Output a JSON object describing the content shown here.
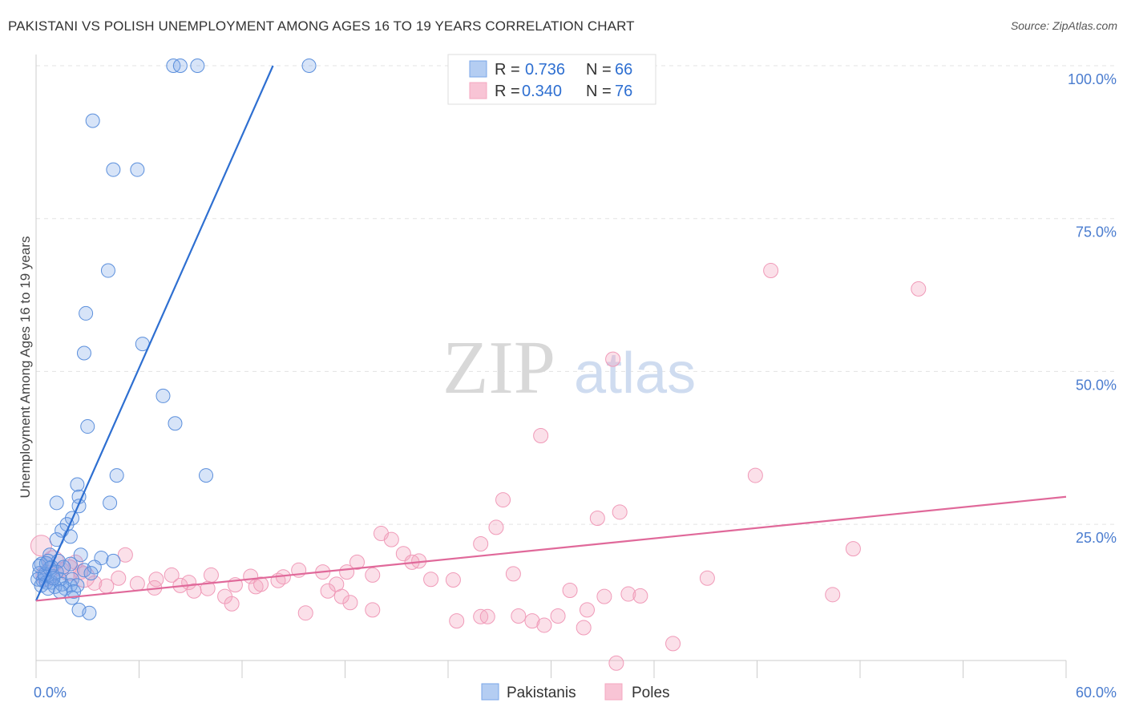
{
  "title": "PAKISTANI VS POLISH UNEMPLOYMENT AMONG AGES 16 TO 19 YEARS CORRELATION CHART",
  "source": "Source: ZipAtlas.com",
  "watermark": {
    "zip": "ZIP",
    "atlas": "atlas"
  },
  "chart_data": {
    "type": "scatter",
    "xlabel": "",
    "ylabel": "Unemployment Among Ages 16 to 19 years",
    "xlim": [
      0,
      60
    ],
    "ylim": [
      0,
      105
    ],
    "x_tick_labels": [
      "0.0%",
      "60.0%"
    ],
    "y_ticks": [
      25,
      50,
      75,
      100
    ],
    "y_tick_labels": [
      "25.0%",
      "50.0%",
      "75.0%",
      "100.0%"
    ],
    "grid": "horizontal dashed",
    "legend_position": "top-center",
    "colors": {
      "Pakistanis": "#7aa6e8",
      "Poles": "#f4a7c0",
      "pak_line": "#2e6fd1",
      "pol_line": "#e0699a"
    },
    "stats": [
      {
        "series": "Pakistanis",
        "r_label": "R =",
        "r": "0.736",
        "n_label": "N =",
        "n": "66"
      },
      {
        "series": "Poles",
        "r_label": "R =",
        "r": "0.340",
        "n_label": "N =",
        "n": "76"
      }
    ],
    "series": [
      {
        "name": "Pakistanis",
        "trend": {
          "x": [
            0,
            13.8
          ],
          "y": [
            12.5,
            100
          ]
        },
        "points": [
          [
            8.0,
            100
          ],
          [
            8.4,
            100
          ],
          [
            9.4,
            100
          ],
          [
            15.9,
            100
          ],
          [
            3.3,
            91
          ],
          [
            4.5,
            83
          ],
          [
            5.9,
            83
          ],
          [
            4.2,
            66.5
          ],
          [
            2.9,
            59.5
          ],
          [
            6.2,
            54.5
          ],
          [
            2.8,
            53
          ],
          [
            7.4,
            46
          ],
          [
            8.1,
            41.5
          ],
          [
            3.0,
            41
          ],
          [
            4.7,
            33
          ],
          [
            9.9,
            33
          ],
          [
            2.4,
            31.5
          ],
          [
            4.3,
            28.5
          ],
          [
            2.5,
            29.5
          ],
          [
            1.2,
            28.5
          ],
          [
            2.5,
            28
          ],
          [
            2.1,
            26
          ],
          [
            1.8,
            25
          ],
          [
            1.5,
            24
          ],
          [
            2.0,
            23
          ],
          [
            1.2,
            22.5
          ],
          [
            0.8,
            20
          ],
          [
            2.6,
            20
          ],
          [
            3.8,
            19.5
          ],
          [
            4.5,
            19
          ],
          [
            0.7,
            19
          ],
          [
            1.3,
            19
          ],
          [
            2.0,
            18.5
          ],
          [
            3.4,
            18
          ],
          [
            0.3,
            18.5
          ],
          [
            0.9,
            18
          ],
          [
            1.6,
            18
          ],
          [
            2.8,
            17.5
          ],
          [
            3.2,
            17
          ],
          [
            0.2,
            17
          ],
          [
            0.5,
            16.5
          ],
          [
            1.0,
            16.5
          ],
          [
            1.4,
            16
          ],
          [
            2.1,
            16
          ],
          [
            0.1,
            16
          ],
          [
            0.4,
            15.8
          ],
          [
            0.6,
            15.5
          ],
          [
            0.9,
            15.5
          ],
          [
            1.5,
            15.2
          ],
          [
            2.0,
            15
          ],
          [
            2.4,
            15
          ],
          [
            0.3,
            15
          ],
          [
            1.1,
            14.8
          ],
          [
            1.7,
            14.5
          ],
          [
            0.7,
            14.5
          ],
          [
            1.4,
            14
          ],
          [
            2.2,
            14
          ],
          [
            0.5,
            16.8
          ],
          [
            1.2,
            17.2
          ],
          [
            0.8,
            17.8
          ],
          [
            0.2,
            18.2
          ],
          [
            0.6,
            18.6
          ],
          [
            1.0,
            16.2
          ],
          [
            2.1,
            13
          ],
          [
            2.5,
            11
          ],
          [
            3.1,
            10.5
          ]
        ]
      },
      {
        "name": "Poles",
        "trend": {
          "x": [
            0,
            60
          ],
          "y": [
            12.5,
            29.5
          ]
        },
        "points": [
          [
            42.8,
            66.5
          ],
          [
            51.4,
            63.5
          ],
          [
            33.6,
            52
          ],
          [
            29.4,
            39.5
          ],
          [
            41.9,
            33
          ],
          [
            27.2,
            29
          ],
          [
            34.0,
            27
          ],
          [
            32.7,
            26
          ],
          [
            26.8,
            24.5
          ],
          [
            20.1,
            23.5
          ],
          [
            20.7,
            22.5
          ],
          [
            25.9,
            21.8
          ],
          [
            47.6,
            21
          ],
          [
            21.4,
            20.2
          ],
          [
            22.3,
            19
          ],
          [
            21.9,
            18.8
          ],
          [
            18.7,
            18.8
          ],
          [
            5.2,
            20
          ],
          [
            2.3,
            18.8
          ],
          [
            1.5,
            17.6
          ],
          [
            2.6,
            17.2
          ],
          [
            4.8,
            16.2
          ],
          [
            7.0,
            16.0
          ],
          [
            7.9,
            16.7
          ],
          [
            8.9,
            15.5
          ],
          [
            10.2,
            16.7
          ],
          [
            12.5,
            16.5
          ],
          [
            14.1,
            15.8
          ],
          [
            15.3,
            17.5
          ],
          [
            16.7,
            17.2
          ],
          [
            18.1,
            17.2
          ],
          [
            19.6,
            16.7
          ],
          [
            23.0,
            16.0
          ],
          [
            24.3,
            15.9
          ],
          [
            27.8,
            16.9
          ],
          [
            39.1,
            16.2
          ],
          [
            11.6,
            15.1
          ],
          [
            10.0,
            14.5
          ],
          [
            12.8,
            14.8
          ],
          [
            14.4,
            16.4
          ],
          [
            13.1,
            15.2
          ],
          [
            9.2,
            14.1
          ],
          [
            6.9,
            14.6
          ],
          [
            17.5,
            15.2
          ],
          [
            3.4,
            15.4
          ],
          [
            4.1,
            14.9
          ],
          [
            5.9,
            15.3
          ],
          [
            8.4,
            15.0
          ],
          [
            11.0,
            13.2
          ],
          [
            11.4,
            12.0
          ],
          [
            18.3,
            12.2
          ],
          [
            17.0,
            14.1
          ],
          [
            17.8,
            13.2
          ],
          [
            15.7,
            10.5
          ],
          [
            19.6,
            11.0
          ],
          [
            24.5,
            9.2
          ],
          [
            25.9,
            9.9
          ],
          [
            26.3,
            9.9
          ],
          [
            28.1,
            10.0
          ],
          [
            28.9,
            9.2
          ],
          [
            29.6,
            8.5
          ],
          [
            30.4,
            10.0
          ],
          [
            31.1,
            14.2
          ],
          [
            32.1,
            11.0
          ],
          [
            33.1,
            13.2
          ],
          [
            34.5,
            13.6
          ],
          [
            35.2,
            13.3
          ],
          [
            37.1,
            5.5
          ],
          [
            31.9,
            8.1
          ],
          [
            33.8,
            2.3
          ],
          [
            46.4,
            13.5
          ],
          [
            0.3,
            21.5
          ],
          [
            1.0,
            19.0
          ],
          [
            1.9,
            17.5
          ],
          [
            2.8,
            16.4
          ],
          [
            0.6,
            16.6
          ]
        ]
      }
    ]
  },
  "legend": {
    "pakistanis": "Pakistanis",
    "poles": "Poles"
  }
}
